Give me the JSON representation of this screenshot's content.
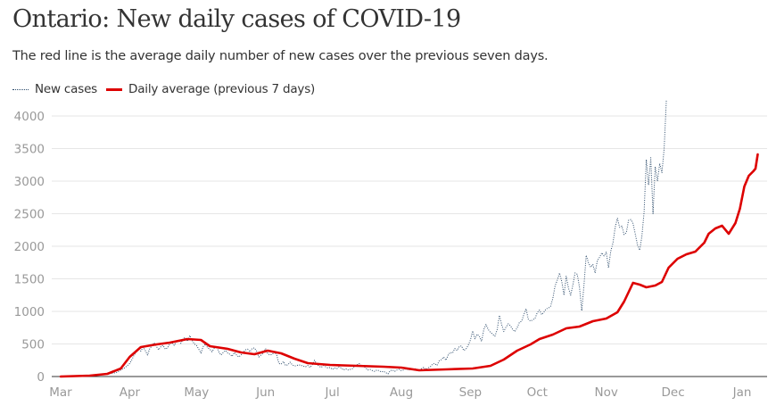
{
  "title": "Ontario: New daily cases of COVID-19",
  "subtitle": "The red line is the average daily number of new cases over the previous seven days.",
  "legend": [
    {
      "label": "New cases",
      "style": "dotted",
      "color": "#2b4a6a"
    },
    {
      "label": "Daily average (previous 7 days)",
      "style": "solid",
      "color": "#dd0000"
    }
  ],
  "chart_data": {
    "type": "line",
    "title": "Ontario: New daily cases of COVID-19",
    "xlabel": "",
    "ylabel": "",
    "ylim": [
      0,
      4000
    ],
    "yticks": [
      0,
      500,
      1000,
      1500,
      2000,
      2500,
      3000,
      3500,
      4000
    ],
    "x_unit": "days since Mar 1",
    "xlim": [
      0,
      315
    ],
    "xticks": [
      {
        "label": "Mar",
        "day": 0
      },
      {
        "label": "Apr",
        "day": 31
      },
      {
        "label": "May",
        "day": 61
      },
      {
        "label": "Jun",
        "day": 92
      },
      {
        "label": "Jul",
        "day": 122
      },
      {
        "label": "Aug",
        "day": 153
      },
      {
        "label": "Sep",
        "day": 184
      },
      {
        "label": "Oct",
        "day": 214
      },
      {
        "label": "Nov",
        "day": 245
      },
      {
        "label": "Dec",
        "day": 275
      },
      {
        "label": "Jan",
        "day": 306
      }
    ],
    "grid": true,
    "legend_position": "top-left",
    "series": [
      {
        "name": "New cases",
        "color": "#2b4a6a",
        "style": "dotted",
        "points": [
          [
            0,
            0
          ],
          [
            6,
            2
          ],
          [
            12,
            10
          ],
          [
            16,
            20
          ],
          [
            19,
            30
          ],
          [
            22,
            45
          ],
          [
            25,
            60
          ],
          [
            27,
            100
          ],
          [
            29,
            140
          ],
          [
            30,
            170
          ],
          [
            31,
            200
          ],
          [
            32,
            260
          ],
          [
            33,
            330
          ],
          [
            34,
            380
          ],
          [
            35,
            420
          ],
          [
            36,
            390
          ],
          [
            37,
            450
          ],
          [
            38,
            400
          ],
          [
            39,
            330
          ],
          [
            40,
            430
          ],
          [
            41,
            470
          ],
          [
            42,
            520
          ],
          [
            43,
            460
          ],
          [
            44,
            410
          ],
          [
            45,
            460
          ],
          [
            46,
            480
          ],
          [
            47,
            420
          ],
          [
            48,
            440
          ],
          [
            49,
            500
          ],
          [
            50,
            520
          ],
          [
            51,
            480
          ],
          [
            52,
            530
          ],
          [
            53,
            560
          ],
          [
            54,
            510
          ],
          [
            55,
            580
          ],
          [
            56,
            600
          ],
          [
            57,
            540
          ],
          [
            58,
            630
          ],
          [
            59,
            560
          ],
          [
            60,
            500
          ],
          [
            61,
            480
          ],
          [
            62,
            420
          ],
          [
            63,
            360
          ],
          [
            64,
            460
          ],
          [
            65,
            500
          ],
          [
            66,
            440
          ],
          [
            67,
            420
          ],
          [
            68,
            380
          ],
          [
            69,
            440
          ],
          [
            70,
            460
          ],
          [
            71,
            380
          ],
          [
            72,
            330
          ],
          [
            73,
            370
          ],
          [
            74,
            400
          ],
          [
            75,
            360
          ],
          [
            76,
            340
          ],
          [
            77,
            310
          ],
          [
            78,
            370
          ],
          [
            79,
            330
          ],
          [
            80,
            300
          ],
          [
            81,
            330
          ],
          [
            82,
            370
          ],
          [
            83,
            410
          ],
          [
            84,
            420
          ],
          [
            85,
            380
          ],
          [
            86,
            430
          ],
          [
            87,
            440
          ],
          [
            88,
            390
          ],
          [
            89,
            300
          ],
          [
            90,
            330
          ],
          [
            91,
            360
          ],
          [
            92,
            430
          ],
          [
            93,
            350
          ],
          [
            94,
            330
          ],
          [
            95,
            340
          ],
          [
            96,
            380
          ],
          [
            97,
            330
          ],
          [
            98,
            200
          ],
          [
            99,
            190
          ],
          [
            100,
            230
          ],
          [
            101,
            170
          ],
          [
            102,
            180
          ],
          [
            103,
            220
          ],
          [
            104,
            180
          ],
          [
            105,
            160
          ],
          [
            106,
            170
          ],
          [
            107,
            180
          ],
          [
            108,
            170
          ],
          [
            109,
            160
          ],
          [
            110,
            150
          ],
          [
            111,
            170
          ],
          [
            112,
            140
          ],
          [
            113,
            180
          ],
          [
            114,
            250
          ],
          [
            115,
            190
          ],
          [
            116,
            160
          ],
          [
            117,
            140
          ],
          [
            118,
            170
          ],
          [
            119,
            150
          ],
          [
            120,
            130
          ],
          [
            121,
            140
          ],
          [
            122,
            110
          ],
          [
            123,
            130
          ],
          [
            124,
            120
          ],
          [
            125,
            150
          ],
          [
            126,
            130
          ],
          [
            127,
            100
          ],
          [
            128,
            120
          ],
          [
            129,
            100
          ],
          [
            130,
            110
          ],
          [
            131,
            120
          ],
          [
            132,
            160
          ],
          [
            133,
            180
          ],
          [
            134,
            200
          ],
          [
            135,
            170
          ],
          [
            136,
            160
          ],
          [
            137,
            130
          ],
          [
            138,
            100
          ],
          [
            139,
            110
          ],
          [
            140,
            90
          ],
          [
            141,
            80
          ],
          [
            142,
            100
          ],
          [
            143,
            90
          ],
          [
            144,
            70
          ],
          [
            145,
            80
          ],
          [
            146,
            60
          ],
          [
            147,
            40
          ],
          [
            148,
            90
          ],
          [
            149,
            100
          ],
          [
            150,
            80
          ],
          [
            151,
            100
          ],
          [
            152,
            110
          ],
          [
            153,
            90
          ],
          [
            154,
            100
          ],
          [
            155,
            120
          ],
          [
            156,
            100
          ],
          [
            157,
            110
          ],
          [
            158,
            100
          ],
          [
            159,
            120
          ],
          [
            160,
            110
          ],
          [
            161,
            100
          ],
          [
            162,
            120
          ],
          [
            163,
            140
          ],
          [
            164,
            110
          ],
          [
            165,
            130
          ],
          [
            166,
            150
          ],
          [
            167,
            190
          ],
          [
            168,
            200
          ],
          [
            169,
            170
          ],
          [
            170,
            240
          ],
          [
            171,
            260
          ],
          [
            172,
            300
          ],
          [
            173,
            250
          ],
          [
            174,
            330
          ],
          [
            175,
            370
          ],
          [
            176,
            360
          ],
          [
            177,
            430
          ],
          [
            178,
            400
          ],
          [
            179,
            460
          ],
          [
            180,
            470
          ],
          [
            181,
            400
          ],
          [
            182,
            420
          ],
          [
            183,
            480
          ],
          [
            184,
            560
          ],
          [
            185,
            700
          ],
          [
            186,
            580
          ],
          [
            187,
            650
          ],
          [
            188,
            620
          ],
          [
            189,
            540
          ],
          [
            190,
            720
          ],
          [
            191,
            800
          ],
          [
            192,
            720
          ],
          [
            193,
            680
          ],
          [
            194,
            650
          ],
          [
            195,
            620
          ],
          [
            196,
            720
          ],
          [
            197,
            940
          ],
          [
            198,
            800
          ],
          [
            199,
            690
          ],
          [
            200,
            760
          ],
          [
            201,
            810
          ],
          [
            202,
            780
          ],
          [
            203,
            720
          ],
          [
            204,
            690
          ],
          [
            205,
            750
          ],
          [
            206,
            830
          ],
          [
            207,
            850
          ],
          [
            208,
            950
          ],
          [
            209,
            1040
          ],
          [
            210,
            880
          ],
          [
            211,
            850
          ],
          [
            212,
            870
          ],
          [
            213,
            890
          ],
          [
            214,
            980
          ],
          [
            215,
            1020
          ],
          [
            216,
            950
          ],
          [
            217,
            990
          ],
          [
            218,
            1040
          ],
          [
            219,
            1050
          ],
          [
            220,
            1080
          ],
          [
            221,
            1200
          ],
          [
            222,
            1390
          ],
          [
            223,
            1480
          ],
          [
            224,
            1590
          ],
          [
            225,
            1460
          ],
          [
            226,
            1250
          ],
          [
            227,
            1540
          ],
          [
            228,
            1360
          ],
          [
            229,
            1250
          ],
          [
            230,
            1400
          ],
          [
            231,
            1590
          ],
          [
            232,
            1570
          ],
          [
            233,
            1370
          ],
          [
            234,
            1010
          ],
          [
            235,
            1400
          ],
          [
            236,
            1860
          ],
          [
            237,
            1750
          ],
          [
            238,
            1680
          ],
          [
            239,
            1720
          ],
          [
            240,
            1590
          ],
          [
            241,
            1780
          ],
          [
            242,
            1830
          ],
          [
            243,
            1900
          ],
          [
            244,
            1850
          ],
          [
            245,
            1910
          ],
          [
            246,
            1670
          ],
          [
            247,
            1920
          ],
          [
            248,
            2050
          ],
          [
            249,
            2290
          ],
          [
            250,
            2430
          ],
          [
            251,
            2290
          ],
          [
            252,
            2310
          ],
          [
            253,
            2180
          ],
          [
            254,
            2210
          ],
          [
            255,
            2400
          ],
          [
            256,
            2410
          ],
          [
            257,
            2350
          ],
          [
            258,
            2190
          ],
          [
            259,
            2020
          ],
          [
            260,
            1940
          ],
          [
            261,
            2150
          ],
          [
            262,
            2520
          ],
          [
            263,
            3330
          ],
          [
            264,
            2940
          ],
          [
            265,
            3360
          ],
          [
            266,
            2500
          ],
          [
            267,
            3220
          ],
          [
            268,
            3000
          ],
          [
            269,
            3270
          ],
          [
            270,
            3130
          ],
          [
            271,
            3500
          ],
          [
            272,
            4250
          ]
        ]
      },
      {
        "name": "Daily average (previous 7 days)",
        "color": "#dd0000",
        "style": "solid",
        "points": [
          [
            0,
            0
          ],
          [
            13,
            14
          ],
          [
            21,
            41
          ],
          [
            27,
            123
          ],
          [
            31,
            301
          ],
          [
            36,
            452
          ],
          [
            43,
            493
          ],
          [
            49,
            521
          ],
          [
            57,
            575
          ],
          [
            63,
            562
          ],
          [
            67,
            466
          ],
          [
            75,
            425
          ],
          [
            81,
            370
          ],
          [
            87,
            342
          ],
          [
            93,
            397
          ],
          [
            99,
            356
          ],
          [
            105,
            274
          ],
          [
            111,
            205
          ],
          [
            121,
            178
          ],
          [
            133,
            164
          ],
          [
            145,
            151
          ],
          [
            153,
            137
          ],
          [
            161,
            96
          ],
          [
            173,
            110
          ],
          [
            185,
            123
          ],
          [
            193,
            164
          ],
          [
            199,
            260
          ],
          [
            205,
            397
          ],
          [
            211,
            493
          ],
          [
            215,
            575
          ],
          [
            221,
            644
          ],
          [
            227,
            740
          ],
          [
            233,
            767
          ],
          [
            239,
            849
          ],
          [
            245,
            890
          ],
          [
            250,
            986
          ],
          [
            253,
            1151
          ],
          [
            257,
            1438
          ],
          [
            260,
            1411
          ],
          [
            263,
            1370
          ],
          [
            267,
            1397
          ],
          [
            270,
            1452
          ],
          [
            273,
            1671
          ],
          [
            277,
            1808
          ],
          [
            281,
            1877
          ],
          [
            285,
            1918
          ],
          [
            289,
            2055
          ],
          [
            291,
            2192
          ],
          [
            294,
            2274
          ],
          [
            297,
            2315
          ],
          [
            300,
            2192
          ],
          [
            303,
            2356
          ],
          [
            305,
            2575
          ],
          [
            307,
            2918
          ],
          [
            309,
            3082
          ],
          [
            311,
            3151
          ],
          [
            312,
            3192
          ],
          [
            313,
            3411
          ]
        ]
      }
    ]
  }
}
